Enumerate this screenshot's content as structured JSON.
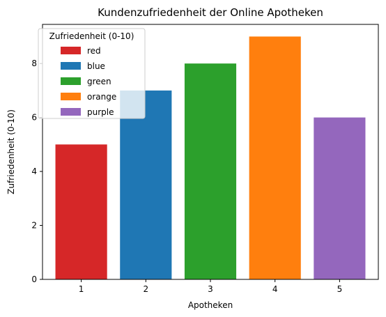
{
  "chart_data": {
    "type": "bar",
    "title": "Kundenzufriedenheit der Online Apotheken",
    "xlabel": "Apotheken",
    "ylabel": "Zufriedenheit (0-10)",
    "categories": [
      "1",
      "2",
      "3",
      "4",
      "5"
    ],
    "values": [
      5,
      7,
      8,
      9,
      6
    ],
    "bar_colors": [
      "#d62728",
      "#1f77b4",
      "#2ca02c",
      "#ff7f0e",
      "#9467bd"
    ],
    "ylim": [
      0,
      9.45
    ],
    "yticks": [
      0,
      2,
      4,
      6,
      8
    ],
    "grid": false,
    "legend": {
      "title": "Zufriedenheit (0-10)",
      "placement": "top-left",
      "entries": [
        {
          "label": "red",
          "color": "#d62728"
        },
        {
          "label": "blue",
          "color": "#1f77b4"
        },
        {
          "label": "green",
          "color": "#2ca02c"
        },
        {
          "label": "orange",
          "color": "#ff7f0e"
        },
        {
          "label": "purple",
          "color": "#9467bd"
        }
      ]
    }
  }
}
